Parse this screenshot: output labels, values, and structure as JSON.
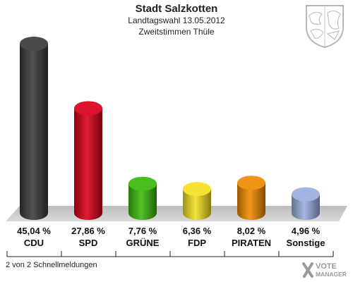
{
  "header": {
    "title": "Stadt Salzkotten",
    "subtitle": "Landtagswahl 13.05.2012",
    "subtitle2": "Zweitstimmen Thüle"
  },
  "footer": {
    "text": "2 von 2 Schnellmeldungen"
  },
  "brand": {
    "line1": "VOTE",
    "line2": "MANAGER",
    "icon": "crossed-ballot-icon"
  },
  "crest": {
    "icon": "coat-of-arms-icon"
  },
  "chart_data": {
    "type": "bar",
    "title": "Stadt Salzkotten",
    "categories": [
      "CDU",
      "SPD",
      "GRÜNE",
      "FDP",
      "PIRATEN",
      "Sonstige"
    ],
    "values": [
      45.04,
      27.86,
      7.76,
      6.36,
      8.02,
      4.96
    ],
    "value_labels": [
      "45,04 %",
      "27,86 %",
      "7,76 %",
      "6,36 %",
      "8,02 %",
      "4,96 %"
    ],
    "colors": [
      "#3a3a3a",
      "#d8001a",
      "#3ab80c",
      "#f4e020",
      "#f08a00",
      "#9aaede"
    ],
    "ylim": [
      0,
      45.04
    ],
    "xlabel": "",
    "ylabel": "",
    "grid": false,
    "legend": "none"
  }
}
